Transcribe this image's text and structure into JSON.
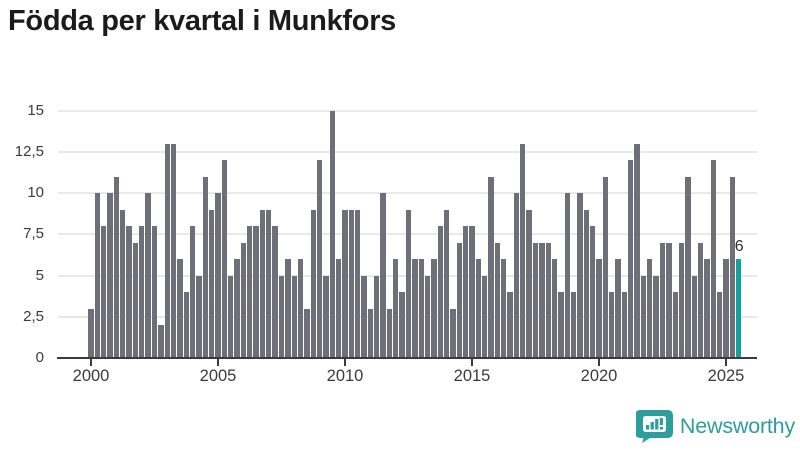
{
  "title": "Födda per kvartal i Munkfors",
  "chart_data": {
    "type": "bar",
    "title": "Födda per kvartal i Munkfors",
    "x_start_year": 2000,
    "x_start_quarter": 1,
    "x_end_year": 2025,
    "x_end_quarter": 3,
    "values": [
      3,
      10,
      8,
      10,
      11,
      9,
      8,
      7,
      8,
      10,
      8,
      2,
      13,
      13,
      6,
      4,
      8,
      5,
      11,
      9,
      10,
      12,
      5,
      6,
      7,
      8,
      8,
      9,
      9,
      8,
      5,
      6,
      5,
      6,
      3,
      9,
      12,
      5,
      15,
      6,
      9,
      9,
      9,
      5,
      3,
      5,
      10,
      3,
      6,
      4,
      9,
      6,
      6,
      5,
      6,
      8,
      9,
      3,
      7,
      8,
      8,
      6,
      5,
      11,
      7,
      6,
      4,
      10,
      13,
      9,
      7,
      7,
      7,
      6,
      4,
      10,
      4,
      10,
      9,
      8,
      6,
      11,
      4,
      6,
      4,
      12,
      13,
      5,
      6,
      5,
      7,
      7,
      4,
      7,
      11,
      5,
      7,
      6,
      12,
      4,
      6,
      11,
      6
    ],
    "ylim": [
      0,
      15
    ],
    "grid": true,
    "y_ticks": [
      {
        "value": 0,
        "label": "0"
      },
      {
        "value": 2.5,
        "label": "2,5"
      },
      {
        "value": 5,
        "label": "5"
      },
      {
        "value": 7.5,
        "label": "7,5"
      },
      {
        "value": 10,
        "label": "10"
      },
      {
        "value": 12.5,
        "label": "12,5"
      },
      {
        "value": 15,
        "label": "15"
      }
    ],
    "x_ticks": [
      {
        "index": 0,
        "label": "2000"
      },
      {
        "index": 20,
        "label": "2005"
      },
      {
        "index": 40,
        "label": "2010"
      },
      {
        "index": 60,
        "label": "2015"
      },
      {
        "index": 80,
        "label": "2020"
      },
      {
        "index": 100,
        "label": "2025"
      }
    ],
    "bar_color": "#6f6f79",
    "highlight_last_color": "#12a0a0",
    "last_value_label": "6"
  },
  "branding": {
    "name": "Newsworthy",
    "color": "#2d9d9d",
    "icon": "bar-chart-speech-bubble-icon"
  }
}
